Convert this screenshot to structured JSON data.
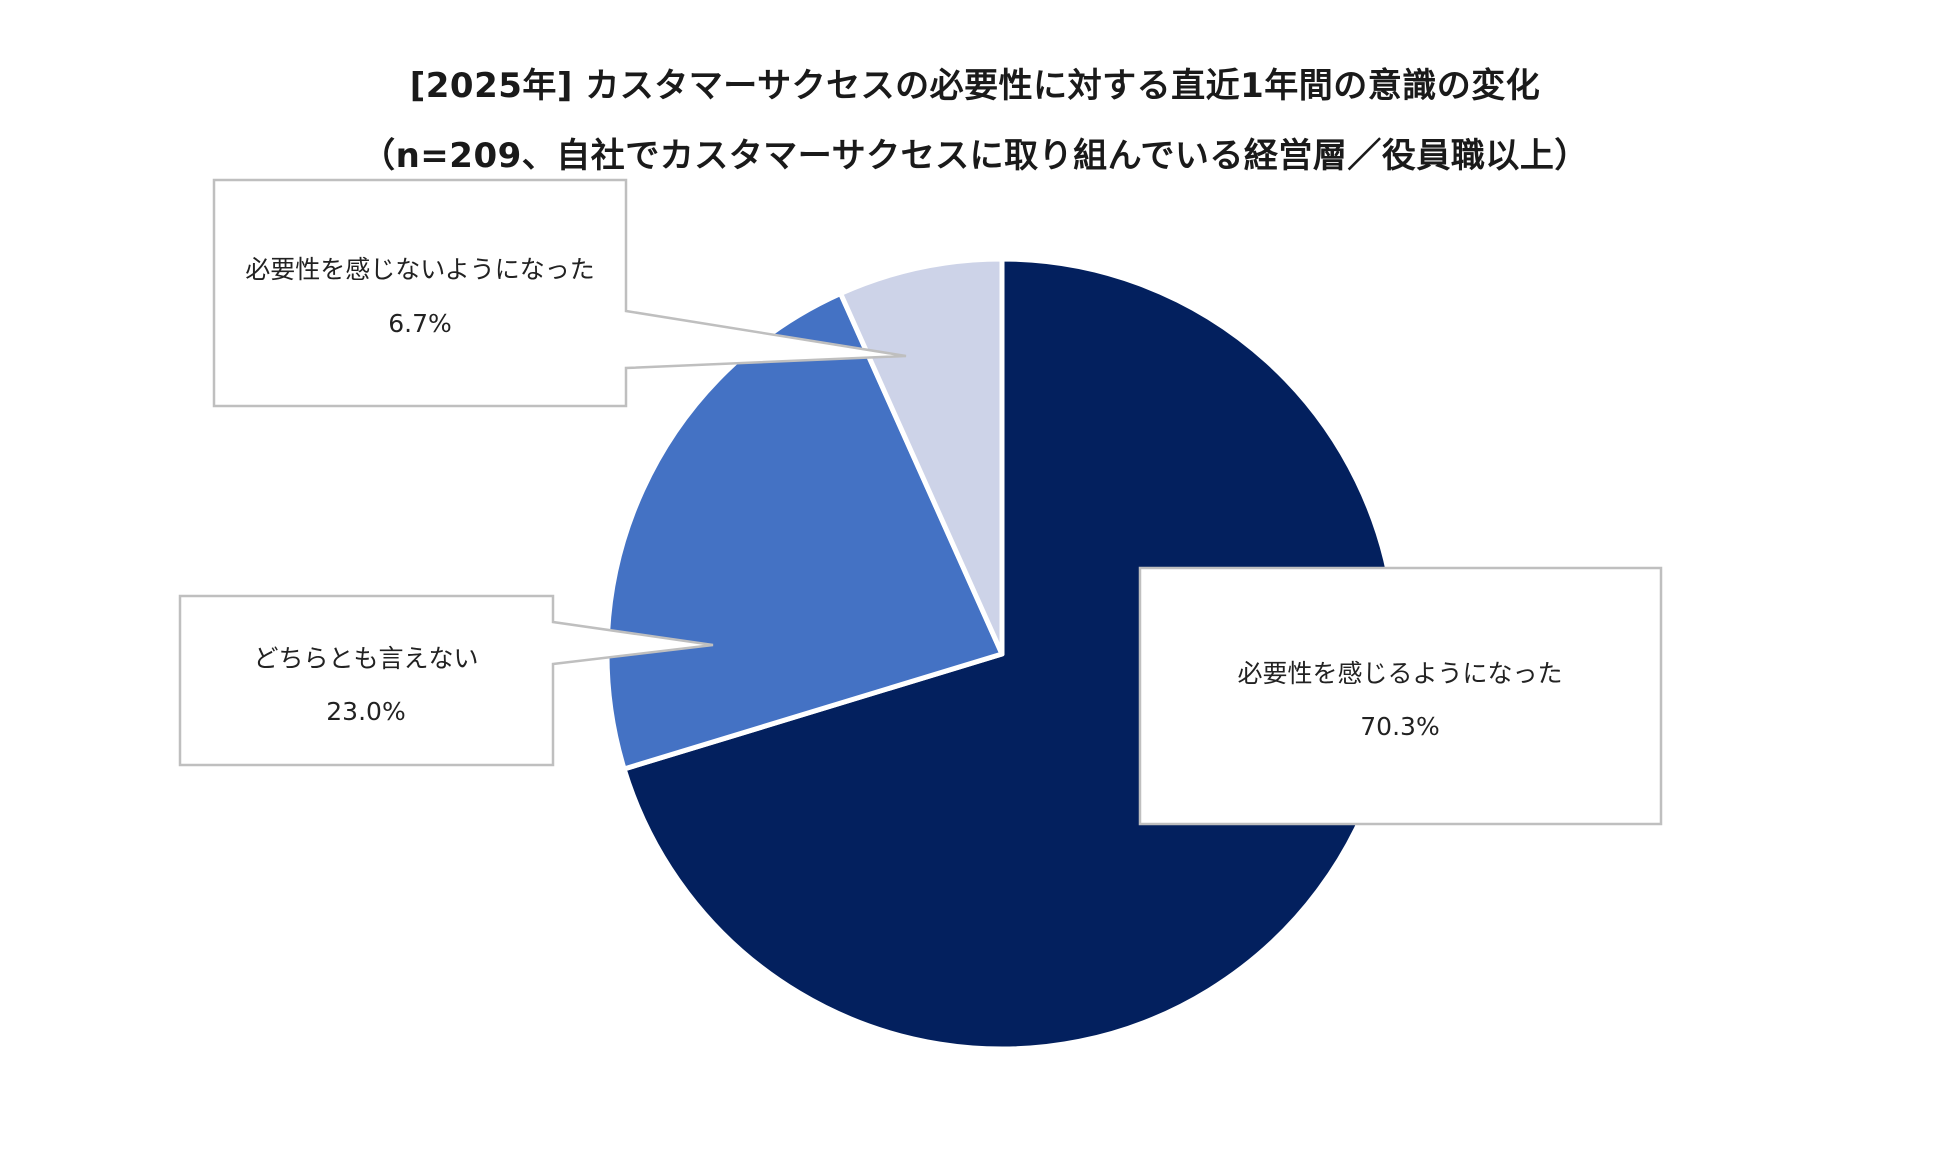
{
  "chart_data": {
    "type": "pie",
    "title": "[2025年] カスタマーサクセスの必要性に対する直近1年間の意識の変化",
    "subtitle": "（n=209、自社でカスタマーサクセスに取り組んでいる経営層／役員職以上）",
    "slices": [
      {
        "label": "必要性を感じるようになった",
        "value": 70.3,
        "display": "70.3%",
        "color": "#03205e"
      },
      {
        "label": "どちらとも言えない",
        "value": 23.0,
        "display": "23.0%",
        "color": "#4472c4"
      },
      {
        "label": "必要性を感じないようになった",
        "value": 6.7,
        "display": "6.7%",
        "color": "#cdd3e8"
      }
    ],
    "start_angle": "12 o'clock",
    "direction": "clockwise",
    "legend": "callouts"
  }
}
